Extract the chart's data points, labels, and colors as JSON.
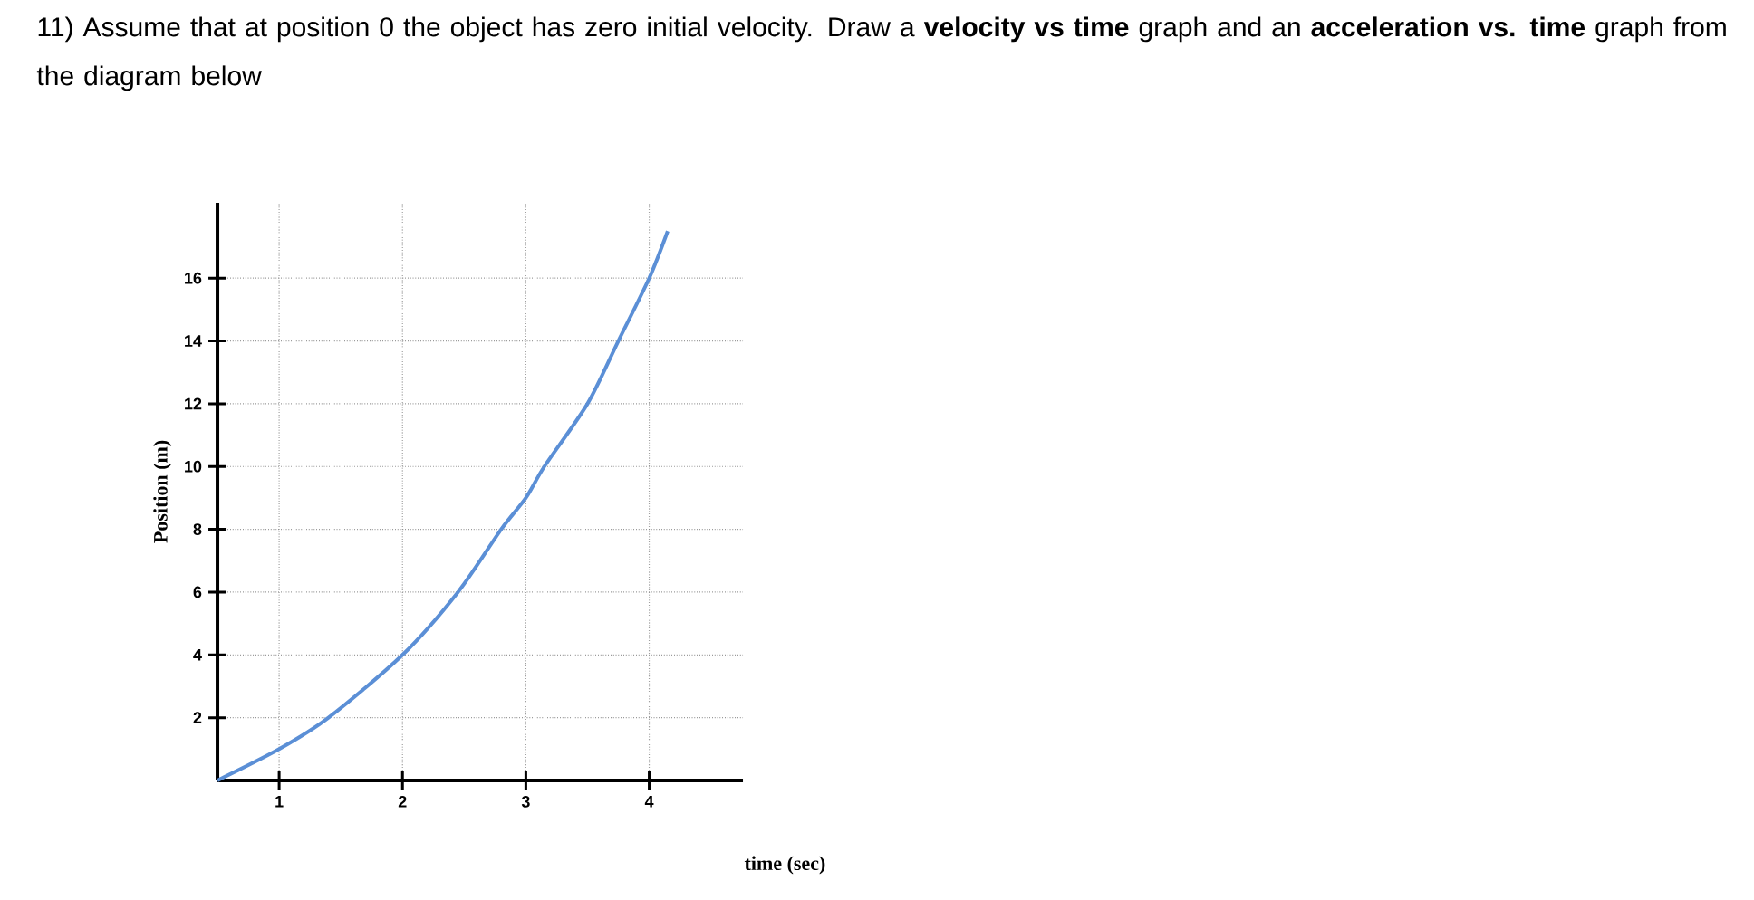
{
  "chart_data": {
    "type": "line",
    "title": "11) Assume that at position 0 the object has zero initial velocity. Draw a **velocity vs time** graph and an **acceleration vs. time** graph from the diagram below",
    "xlabel": "time (sec)",
    "ylabel": "Position (m)",
    "x": [
      0.5,
      1,
      1.4,
      2,
      2.45,
      2.8,
      3,
      3.15,
      3.5,
      3.75,
      4,
      4.15
    ],
    "values": [
      0,
      1,
      2,
      4,
      6,
      8,
      9,
      10,
      12,
      14,
      16,
      17.5
    ],
    "color": "#5b8fd6",
    "xlim": [
      0.5,
      4.76
    ],
    "ylim": [
      0,
      18.4
    ],
    "xticks": [
      1,
      2,
      3,
      4
    ],
    "yticks": [
      2,
      4,
      6,
      8,
      10,
      12,
      14,
      16
    ],
    "grid": true
  }
}
